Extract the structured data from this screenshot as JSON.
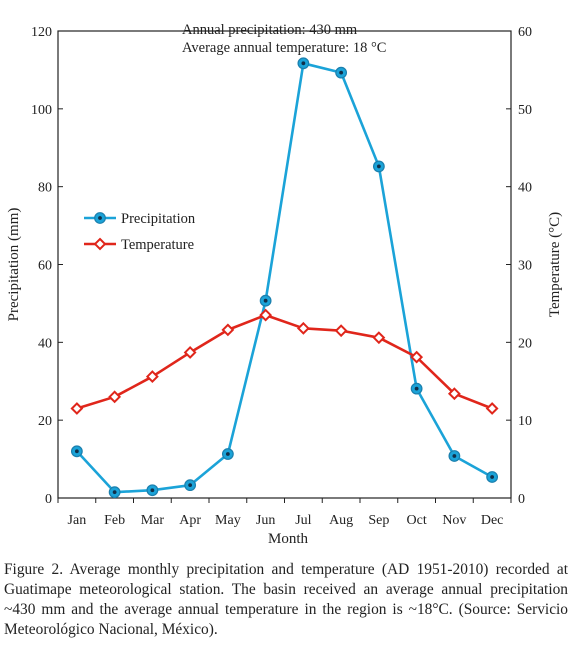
{
  "chart_data": {
    "type": "line",
    "categories": [
      "Jan",
      "Feb",
      "Mar",
      "Apr",
      "May",
      "Jun",
      "Jul",
      "Aug",
      "Sep",
      "Oct",
      "Nov",
      "Dec"
    ],
    "xlabel": "Month",
    "ylabel_left": "Precipitation (mm)",
    "ylabel_right": "Temperature (°C)",
    "ylim_left": [
      0,
      120
    ],
    "ylim_right": [
      0,
      60
    ],
    "yticks_left": [
      "0",
      "20",
      "40",
      "60",
      "80",
      "100",
      "120"
    ],
    "yticks_right": [
      "0",
      "10",
      "20",
      "30",
      "40",
      "50",
      "60"
    ],
    "grid": false,
    "legend_position": "middle-left",
    "annotations": [
      "Annual precipitation: 430 mm",
      "Average annual temperature: 18 °C"
    ],
    "series": [
      {
        "name": "Precipitation",
        "axis": "left",
        "color": "#1ba3d8",
        "marker": "circle",
        "values": [
          12,
          1.5,
          2,
          3.3,
          11.3,
          50.7,
          111.7,
          109.3,
          85.2,
          28.1,
          10.8,
          5.4
        ]
      },
      {
        "name": "Temperature",
        "axis": "right",
        "color": "#e0261b",
        "marker": "diamond",
        "values": [
          11.5,
          13,
          15.6,
          18.7,
          21.6,
          23.5,
          21.8,
          21.5,
          20.6,
          18.1,
          13.4,
          11.5
        ]
      }
    ]
  },
  "caption": "Figure 2. Average monthly precipitation and temperature (AD 1951-2010) recorded at Guatimape meteorological station. The basin received an average annual precipitation ~430 mm and the average annual temperature in the region is ~18°C. (Source: Servicio Meteorológico Nacional, México)."
}
